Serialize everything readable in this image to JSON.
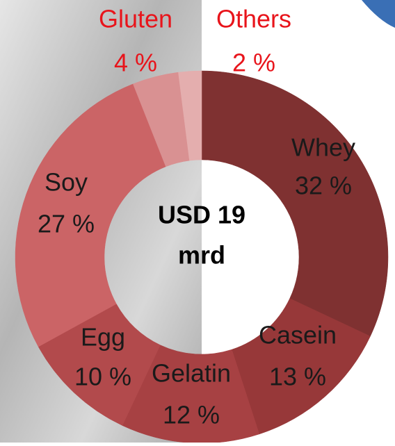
{
  "chart_data": {
    "type": "donut",
    "categories": [
      "Whey",
      "Casein",
      "Gelatin",
      "Egg",
      "Soy",
      "Gluten",
      "Others"
    ],
    "values": [
      32,
      13,
      12,
      10,
      27,
      4,
      2
    ],
    "value_labels": [
      "32 %",
      "13 %",
      "12 %",
      "10 %",
      "27 %",
      "4 %",
      "2 %"
    ],
    "colors": [
      "#7f3131",
      "#973839",
      "#a74143",
      "#b24a4c",
      "#cb6466",
      "#d99192",
      "#e4aeae"
    ],
    "center_label": [
      "USD 19",
      "mrd"
    ]
  }
}
